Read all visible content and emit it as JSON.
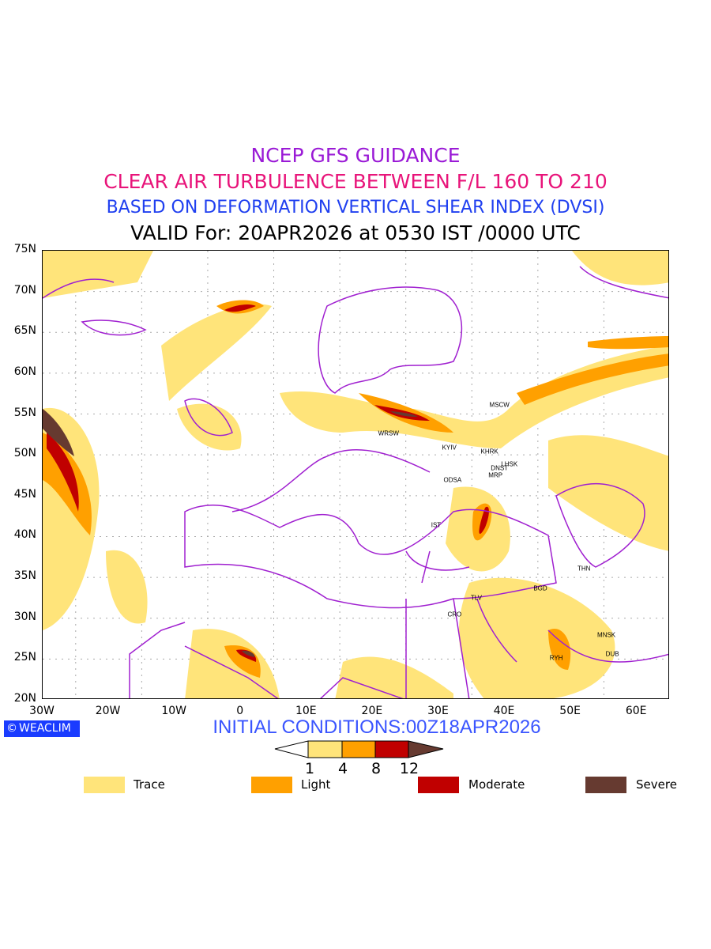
{
  "titles": {
    "line1": "NCEP GFS GUIDANCE",
    "line2": "CLEAR AIR TURBULENCE BETWEEN F/L 160 TO 210",
    "line3": "BASED ON DEFORMATION VERTICAL SHEAR INDEX (DVSI)",
    "line4": "VALID For: 20APR2026 at 0530 IST /0000 UTC"
  },
  "colors": {
    "line1": "#9a1ad6",
    "line2": "#e8147a",
    "line3": "#2040f0",
    "trace": "#ffe47a",
    "light": "#ffa000",
    "moderate": "#c00000",
    "severe": "#663a30",
    "boundary": "#a020d0"
  },
  "axes": {
    "lat_labels": [
      "75N",
      "70N",
      "65N",
      "60N",
      "55N",
      "50N",
      "45N",
      "40N",
      "35N",
      "30N",
      "25N",
      "20N"
    ],
    "lon_labels": [
      "30W",
      "20W",
      "10W",
      "0",
      "10E",
      "20E",
      "30E",
      "40E",
      "50E",
      "60E"
    ]
  },
  "cities": [
    {
      "name": "MSCW",
      "lon": 39.3,
      "lat": 56.0
    },
    {
      "name": "WRSW",
      "lon": 22.5,
      "lat": 52.5
    },
    {
      "name": "KYIV",
      "lon": 31.7,
      "lat": 50.8
    },
    {
      "name": "KHRK",
      "lon": 37.8,
      "lat": 50.3
    },
    {
      "name": "LHSK",
      "lon": 40.8,
      "lat": 48.8
    },
    {
      "name": "DNST",
      "lon": 39.3,
      "lat": 48.3
    },
    {
      "name": "MRP",
      "lon": 38.7,
      "lat": 47.4
    },
    {
      "name": "ODSA",
      "lon": 32.2,
      "lat": 46.8
    },
    {
      "name": "IST",
      "lon": 29.7,
      "lat": 41.3
    },
    {
      "name": "THN",
      "lon": 52.1,
      "lat": 36.0
    },
    {
      "name": "BGD",
      "lon": 45.5,
      "lat": 33.6
    },
    {
      "name": "TLV",
      "lon": 35.8,
      "lat": 32.4
    },
    {
      "name": "CRO",
      "lon": 32.5,
      "lat": 30.4
    },
    {
      "name": "MNSK",
      "lon": 55.5,
      "lat": 27.8
    },
    {
      "name": "DUB",
      "lon": 56.4,
      "lat": 25.5
    },
    {
      "name": "RYH",
      "lon": 47.9,
      "lat": 25.0
    }
  ],
  "logo": "WEACLIM",
  "initial_conditions": "INITIAL CONDITIONS:00Z18APR2026",
  "colorbar": {
    "ticks": [
      "1",
      "4",
      "8",
      "12"
    ]
  },
  "legend": [
    {
      "label": "Trace",
      "color": "#ffe47a"
    },
    {
      "label": "Light",
      "color": "#ffa000"
    },
    {
      "label": "Moderate",
      "color": "#c00000"
    },
    {
      "label": "Severe",
      "color": "#663a30"
    }
  ]
}
